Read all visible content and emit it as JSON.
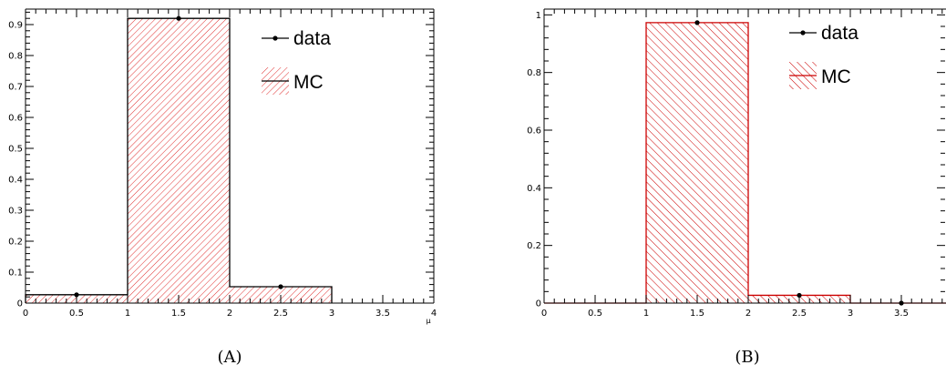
{
  "chart_data": [
    {
      "type": "bar",
      "panel_label": "(A)",
      "xlabel": "μ",
      "ylabel": "",
      "xlim": [
        0,
        4
      ],
      "ylim": [
        0,
        0.95
      ],
      "x_ticks": [
        "0",
        "0.5",
        "1",
        "1.5",
        "2",
        "2.5",
        "3",
        "3.5",
        "4"
      ],
      "y_ticks": [
        "0",
        "0.1",
        "0.2",
        "0.3",
        "0.4",
        "0.5",
        "0.6",
        "0.7",
        "0.8",
        "0.9"
      ],
      "bin_edges": [
        0,
        1,
        2,
        3
      ],
      "mc_values": [
        0.027,
        0.92,
        0.053
      ],
      "data_points": [
        {
          "x": 0.5,
          "y": 0.027
        },
        {
          "x": 1.5,
          "y": 0.92
        },
        {
          "x": 2.5,
          "y": 0.053
        }
      ],
      "legend": {
        "placement": "top-right",
        "entries": [
          "data",
          "MC"
        ]
      },
      "mc_line_color": "#000000",
      "mc_fill_color": "#e03030",
      "grid": false
    },
    {
      "type": "bar",
      "panel_label": "(B)",
      "xlabel": "",
      "ylabel": "",
      "xlim": [
        0,
        4
      ],
      "ylim": [
        0,
        1.02
      ],
      "x_ticks": [
        "0",
        "0.5",
        "1",
        "1.5",
        "2",
        "2.5",
        "3",
        "3.5"
      ],
      "y_ticks": [
        "0",
        "0.2",
        "0.4",
        "0.6",
        "0.8",
        "1"
      ],
      "bin_edges": [
        0,
        1,
        2,
        3,
        4
      ],
      "mc_values": [
        0.0,
        0.973,
        0.027,
        0.0
      ],
      "data_points": [
        {
          "x": 1.5,
          "y": 0.973
        },
        {
          "x": 2.5,
          "y": 0.027
        },
        {
          "x": 3.5,
          "y": 0.0
        }
      ],
      "legend": {
        "placement": "top-right",
        "entries": [
          "data",
          "MC"
        ]
      },
      "mc_line_color": "#cc0000",
      "mc_fill_color": "#cc0000",
      "grid": false
    }
  ]
}
